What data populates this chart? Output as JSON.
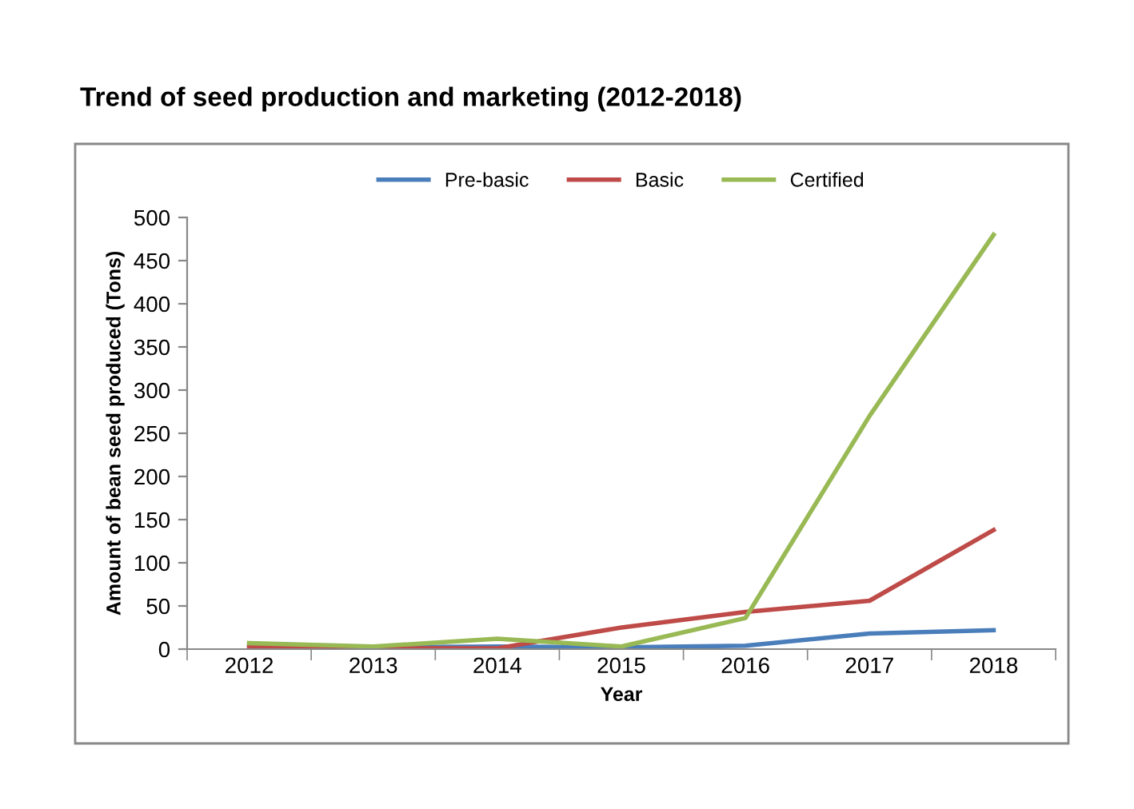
{
  "chart_data": {
    "type": "line",
    "title": "Trend of seed production and marketing (2012-2018)",
    "xlabel": "Year",
    "ylabel": "Amount of bean seed produced (Tons)",
    "categories": [
      "2012",
      "2013",
      "2014",
      "2015",
      "2016",
      "2017",
      "2018"
    ],
    "series": [
      {
        "name": "Pre-basic",
        "color": "#4a7ebb",
        "values": [
          4,
          2,
          3,
          2,
          4,
          18,
          22
        ]
      },
      {
        "name": "Basic",
        "color": "#be4b48",
        "values": [
          2,
          1,
          1,
          25,
          43,
          56,
          138
        ]
      },
      {
        "name": "Certified",
        "color": "#98b954",
        "values": [
          7,
          3,
          12,
          3,
          36,
          270,
          480
        ]
      }
    ],
    "ylim": [
      0,
      500
    ],
    "yticks": [
      0,
      50,
      100,
      150,
      200,
      250,
      300,
      350,
      400,
      450,
      500
    ],
    "grid": false,
    "legend": "top",
    "marker": "none",
    "line_style": "solid"
  }
}
